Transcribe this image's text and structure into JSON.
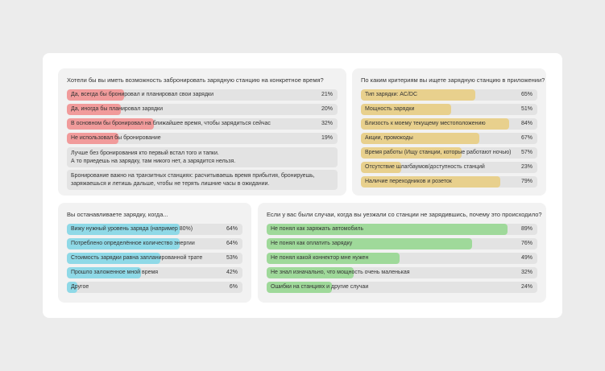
{
  "cards": [
    {
      "question": "Хотели бы вы иметь возможность забронировать зарядную станцию на конкретное время?",
      "color": "#f19b9b",
      "rows": [
        {
          "text": "Да, всегда бы бронировал и планировал свои зарядки",
          "value": 21,
          "value_label": "21%"
        },
        {
          "text": "Да, иногда бы планировал зарядки",
          "value": 20,
          "value_label": "20%"
        },
        {
          "text": "В основном бы бронировал на ближайшее время, чтобы зарядиться сейчас",
          "value": 32,
          "value_label": "32%"
        },
        {
          "text": "Не использовал бы бронирование",
          "value": 19,
          "value_label": "19%"
        }
      ],
      "notes": [
        [
          "Лучше без бронирования кто первый встал того и тапки.",
          "А то приедешь на зарядку, там никого нет, а зарядится нельзя."
        ],
        [
          "Бронирование важно на транзитных станциях: расчитываешь время прибытия, бронируешь,",
          "заряжаешься и летишь дальше, чтобы не терять лишние часы в ожидании."
        ]
      ]
    },
    {
      "question": "По каким критериям вы ищете зарядную станцию в приложении?",
      "color": "#e8d08d",
      "rows": [
        {
          "text": "Тип зарядки: AC/DC",
          "value": 65,
          "value_label": "65%"
        },
        {
          "text": "Мощность зарядки",
          "value": 51,
          "value_label": "51%"
        },
        {
          "text": "Близость к моему текущему местоположению",
          "value": 84,
          "value_label": "84%"
        },
        {
          "text": "Акции, промокоды",
          "value": 67,
          "value_label": "67%"
        },
        {
          "text": "Время работы (Ищу станции, которые работают ночью)",
          "value": 57,
          "value_label": "57%"
        },
        {
          "text": "Отсутствие шлагбаумов/доступность станций",
          "value": 23,
          "value_label": "23%"
        },
        {
          "text": "Наличие переходников и розеток",
          "value": 79,
          "value_label": "79%"
        }
      ]
    },
    {
      "question": "Вы останавливаете зарядку, когда...",
      "color": "#8fd9e7",
      "rows": [
        {
          "text": "Вижу нужный уровень заряда (например 80%)",
          "value": 64,
          "value_label": "64%"
        },
        {
          "text": "Потреблено определённое количество энергии",
          "value": 64,
          "value_label": "64%"
        },
        {
          "text": "Стоимость зарядки равна запланированной трате",
          "value": 53,
          "value_label": "53%"
        },
        {
          "text": "Прошло заложенное мной время",
          "value": 42,
          "value_label": "42%"
        },
        {
          "text": "Другое",
          "value": 6,
          "value_label": "6%"
        }
      ]
    },
    {
      "question": "Если у вас были случаи, когда вы уезжали со станции не зарядившись, почему это происходило?",
      "color": "#9fd99a",
      "rows": [
        {
          "text": "Не понял как заряжать автомобиль",
          "value": 89,
          "value_label": "89%"
        },
        {
          "text": "Не понял как оплатить зарядку",
          "value": 76,
          "value_label": "76%"
        },
        {
          "text": "Не понял какой коннектор мне нужен",
          "value": 49,
          "value_label": "49%"
        },
        {
          "text": "Не знал изначально, что мощность очень маленькая",
          "value": 32,
          "value_label": "32%"
        },
        {
          "text": "Ошибки на станциях и другие случаи",
          "value": 24,
          "value_label": "24%"
        }
      ]
    }
  ]
}
